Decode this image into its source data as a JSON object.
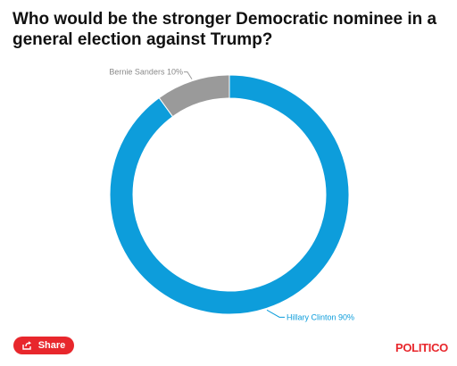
{
  "title": "Who would be the stronger Democratic nominee in a general election against Trump?",
  "chart_data": {
    "type": "pie",
    "donut": true,
    "title": "Who would be the stronger Democratic nominee in a general election against Trump?",
    "series": [
      {
        "name": "Hillary Clinton",
        "value": 90,
        "label": "Hillary Clinton 90%",
        "color": "#0d9ddb"
      },
      {
        "name": "Bernie Sanders",
        "value": 10,
        "label": "Bernie Sanders 10%",
        "color": "#9a9a9a"
      }
    ],
    "legend": "none"
  },
  "share": {
    "label": "Share",
    "icon": "share-icon"
  },
  "brand": {
    "label": "POLITICO",
    "color": "#e8272c"
  }
}
